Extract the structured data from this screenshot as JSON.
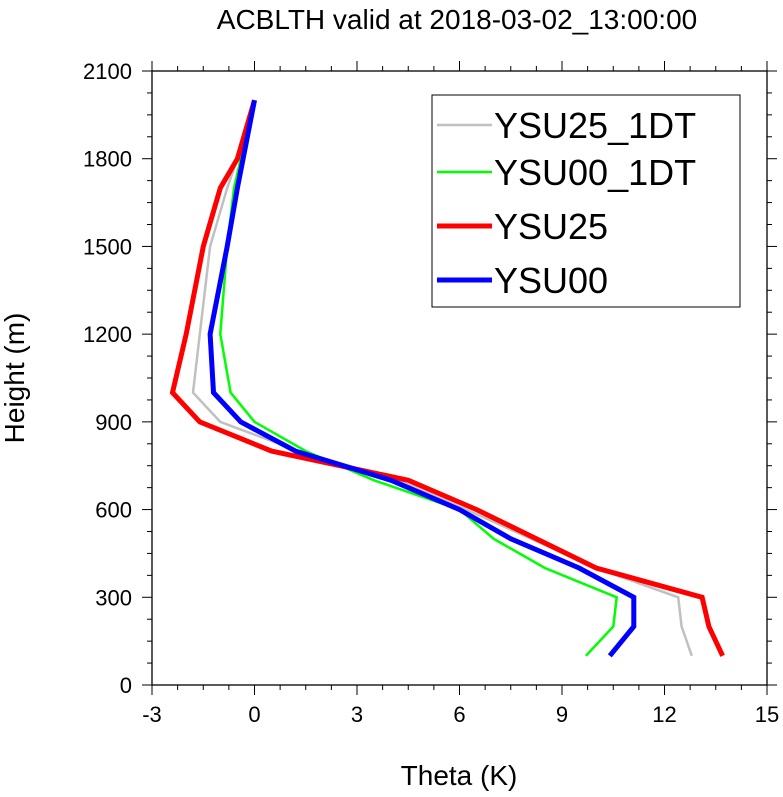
{
  "chart_data": {
    "type": "line",
    "title": "ACBLTH valid at 2018-03-02_13:00:00",
    "xlabel": "Theta (K)",
    "ylabel": "Height (m)",
    "xlim": [
      -3,
      15
    ],
    "ylim": [
      0,
      2100
    ],
    "xticks": [
      "-3",
      "0",
      "3",
      "6",
      "9",
      "12",
      "15"
    ],
    "yticks": [
      "0",
      "300",
      "600",
      "900",
      "1200",
      "1500",
      "1800",
      "2100"
    ],
    "legend_position": "top-right",
    "series": [
      {
        "name": "YSU25_1DT",
        "color": "#c0c0c0",
        "width": "thin",
        "x": [
          12.8,
          12.5,
          12.4,
          10.0,
          6.2,
          4.2,
          1.3,
          -1.0,
          -1.8,
          -1.6,
          -1.3,
          -0.8,
          -0.5,
          0.0
        ],
        "y": [
          100,
          200,
          300,
          400,
          600,
          700,
          800,
          900,
          1000,
          1200,
          1500,
          1700,
          1800,
          2000
        ]
      },
      {
        "name": "YSU00_1DT",
        "color": "#00ff00",
        "width": "thin",
        "x": [
          9.7,
          10.5,
          10.6,
          8.5,
          7.0,
          6.0,
          3.5,
          1.5,
          0.0,
          -0.7,
          -1.0,
          -0.8,
          -0.6,
          0.0
        ],
        "y": [
          100,
          200,
          300,
          400,
          500,
          600,
          700,
          800,
          900,
          1000,
          1200,
          1500,
          1700,
          2000
        ]
      },
      {
        "name": "YSU25",
        "color": "#ff0000",
        "width": "thick",
        "x": [
          13.7,
          13.3,
          13.1,
          10.0,
          6.5,
          4.5,
          0.5,
          -1.6,
          -2.4,
          -2.0,
          -1.5,
          -1.0,
          -0.5,
          0.0
        ],
        "y": [
          100,
          200,
          300,
          400,
          600,
          700,
          800,
          900,
          1000,
          1200,
          1500,
          1700,
          1800,
          2000
        ]
      },
      {
        "name": "YSU00",
        "color": "#0000ff",
        "width": "thick",
        "x": [
          10.4,
          11.1,
          11.1,
          9.5,
          7.5,
          6.0,
          4.0,
          1.2,
          -0.4,
          -1.2,
          -1.3,
          -0.8,
          -0.5,
          0.0
        ],
        "y": [
          100,
          200,
          300,
          400,
          500,
          600,
          700,
          800,
          900,
          1000,
          1200,
          1500,
          1700,
          2000
        ]
      }
    ]
  }
}
